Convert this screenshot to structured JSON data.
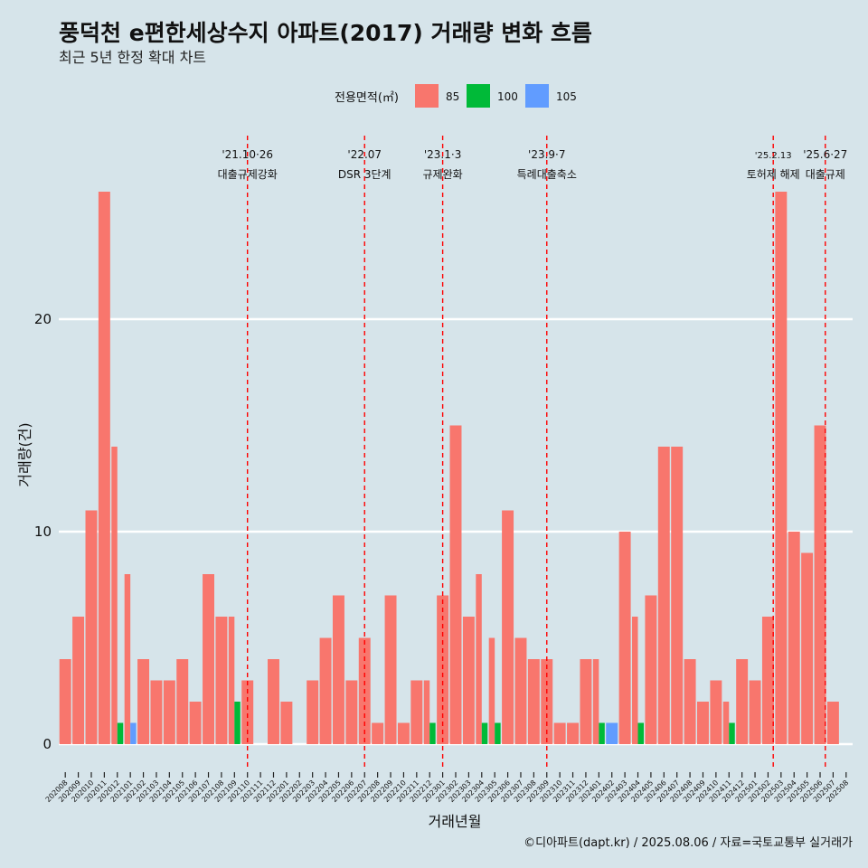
{
  "chart_data": {
    "type": "bar",
    "title": "풍덕천 e편한세상수지 아파트(2017) 거래량 변화 흐름",
    "subtitle": "최근 5년 한정 확대 차트",
    "xlabel": "거래년월",
    "ylabel": "거래량(건)",
    "caption": "©디아파트(dapt.kr) / 2025.08.06 / 자료=국토교통부 실거래가",
    "ylim": [
      -1.2,
      28
    ],
    "yticks": [
      0,
      10,
      20
    ],
    "grid": "horizontal",
    "legend": {
      "title": "전용면적(㎡)",
      "position": "top",
      "entries": [
        {
          "label": "85",
          "color": "#f8766d"
        },
        {
          "label": "100",
          "color": "#00ba38"
        },
        {
          "label": "105",
          "color": "#619cff"
        }
      ]
    },
    "categories": [
      "202008",
      "202009",
      "202010",
      "202011",
      "202012",
      "202101",
      "202102",
      "202103",
      "202104",
      "202105",
      "202106",
      "202107",
      "202108",
      "202109",
      "202110",
      "202111",
      "202112",
      "202201",
      "202202",
      "202203",
      "202204",
      "202205",
      "202206",
      "202207",
      "202208",
      "202209",
      "202210",
      "202211",
      "202212",
      "202301",
      "202302",
      "202303",
      "202304",
      "202305",
      "202306",
      "202307",
      "202308",
      "202309",
      "202310",
      "202311",
      "202312",
      "202401",
      "202402",
      "202403",
      "202404",
      "202405",
      "202406",
      "202407",
      "202408",
      "202409",
      "202410",
      "202411",
      "202412",
      "202501",
      "202502",
      "202503",
      "202504",
      "202505",
      "202506",
      "202507",
      "202508"
    ],
    "series": [
      {
        "name": "85",
        "color": "#f8766d",
        "values": [
          4,
          6,
          11,
          26,
          14,
          8,
          4,
          3,
          3,
          4,
          2,
          8,
          6,
          6,
          3,
          0,
          4,
          2,
          0,
          3,
          5,
          7,
          3,
          5,
          1,
          7,
          1,
          3,
          3,
          7,
          15,
          6,
          8,
          5,
          11,
          5,
          4,
          4,
          1,
          1,
          4,
          4,
          0,
          10,
          6,
          7,
          14,
          14,
          4,
          2,
          3,
          2,
          4,
          3,
          6,
          26,
          10,
          9,
          15,
          2,
          0
        ]
      },
      {
        "name": "100",
        "color": "#00ba38",
        "values": [
          0,
          0,
          0,
          0,
          1,
          0,
          0,
          0,
          0,
          0,
          0,
          0,
          0,
          2,
          0,
          0,
          0,
          0,
          0,
          0,
          0,
          0,
          0,
          0,
          0,
          0,
          0,
          0,
          1,
          0,
          0,
          0,
          1,
          1,
          0,
          0,
          0,
          0,
          0,
          0,
          0,
          1,
          0,
          0,
          1,
          0,
          0,
          0,
          0,
          0,
          0,
          1,
          0,
          0,
          0,
          0,
          0,
          0,
          0,
          0,
          0
        ]
      },
      {
        "name": "105",
        "color": "#619cff",
        "values": [
          0,
          0,
          0,
          0,
          0,
          1,
          0,
          0,
          0,
          0,
          0,
          0,
          0,
          0,
          0,
          0,
          0,
          0,
          0,
          0,
          0,
          0,
          0,
          0,
          0,
          0,
          0,
          0,
          0,
          0,
          0,
          0,
          0,
          0,
          0,
          0,
          0,
          0,
          0,
          0,
          0,
          0,
          1,
          0,
          0,
          0,
          0,
          0,
          0,
          0,
          0,
          0,
          0,
          0,
          0,
          0,
          0,
          0,
          0,
          0,
          0
        ]
      }
    ],
    "events": [
      {
        "date": "'21.10·26",
        "label": "대출규제강화",
        "pos": 14.0
      },
      {
        "date": "'22.07",
        "label": "DSR 3단계",
        "pos": 23.0
      },
      {
        "date": "'23.1·3",
        "label": "규제완화",
        "pos": 29.0
      },
      {
        "date": "'23.9·7",
        "label": "특례대출축소",
        "pos": 37.0
      },
      {
        "date": "'25.2.13",
        "label": "토허제 해제",
        "pos": 54.4
      },
      {
        "date": "'25.6·27",
        "label": "대출규제",
        "pos": 58.4
      }
    ]
  }
}
